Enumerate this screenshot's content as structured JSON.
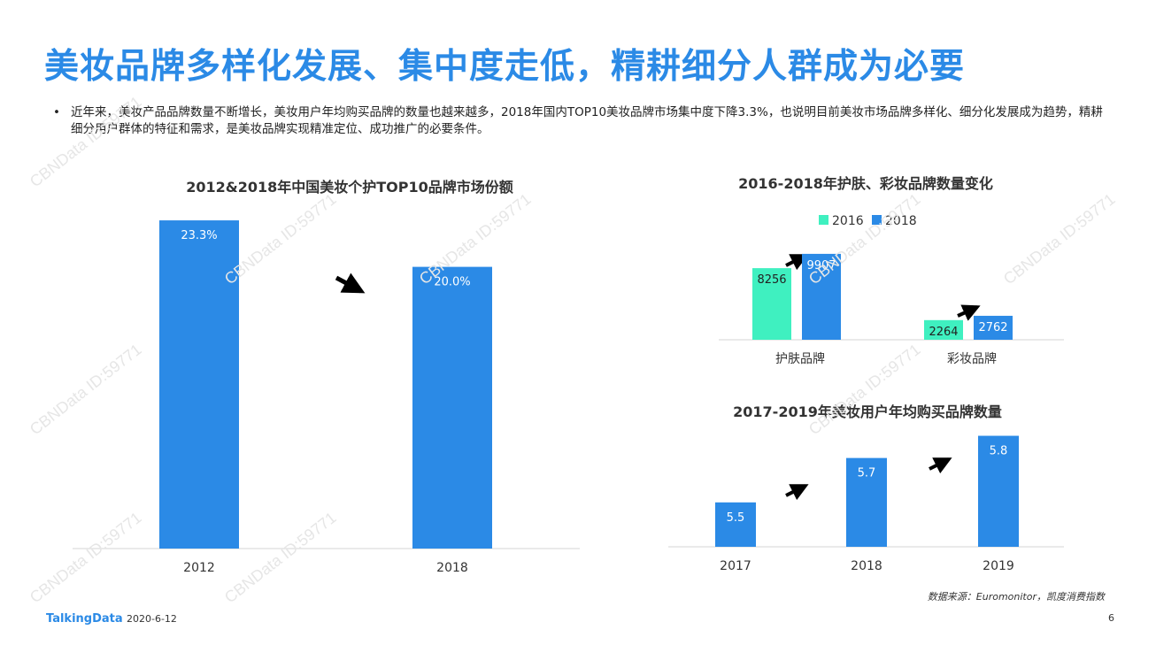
{
  "title": "美妆品牌多样化发展、集中度走低，精耕细分人群成为必要",
  "bullet": "近年来，美妆产品品牌数量不断增长，美妆用户年均购买品牌的数量也越来越多，2018年国内TOP10美妆品牌市场集中度下降3.3%，也说明目前美妆市场品牌多样化、细分化发展成为趋势，精耕细分用户群体的特征和需求，是美妆品牌实现精准定位、成功推广的必要条件。",
  "bullet_marker": "•",
  "source": "数据来源：Euromonitor，凯度消费指数",
  "footer": {
    "logo": "TalkingData",
    "date": "2020-6-12",
    "page": "6"
  },
  "watermark": "CBNData ID:59771",
  "colors": {
    "primary": "#2b8ae6",
    "secondary": "#3ff0c0",
    "title": "#2b8ae6"
  },
  "chart_data": [
    {
      "type": "bar",
      "title": "2012&2018年中国美妆个护TOP10品牌市场份额",
      "categories": [
        "2012",
        "2018"
      ],
      "values": [
        23.3,
        20.0
      ],
      "labels": [
        "23.3%",
        "20.0%"
      ],
      "ylim": [
        0,
        25
      ]
    },
    {
      "type": "bar",
      "title": "2016-2018年护肤、彩妆品牌数量变化",
      "categories": [
        "护肤品牌",
        "彩妆品牌"
      ],
      "series": [
        {
          "name": "2016",
          "values": [
            8256,
            2264
          ],
          "color": "#3ff0c0"
        },
        {
          "name": "2018",
          "values": [
            9907,
            2762
          ],
          "color": "#2b8ae6"
        }
      ],
      "legend": "top",
      "ylim": [
        0,
        10000
      ]
    },
    {
      "type": "bar",
      "title": "2017-2019年美妆用户年均购买品牌数量",
      "categories": [
        "2017",
        "2018",
        "2019"
      ],
      "values": [
        5.5,
        5.7,
        5.8
      ],
      "labels": [
        "5.5",
        "5.7",
        "5.8"
      ],
      "ylim": [
        5.3,
        5.85
      ]
    }
  ]
}
